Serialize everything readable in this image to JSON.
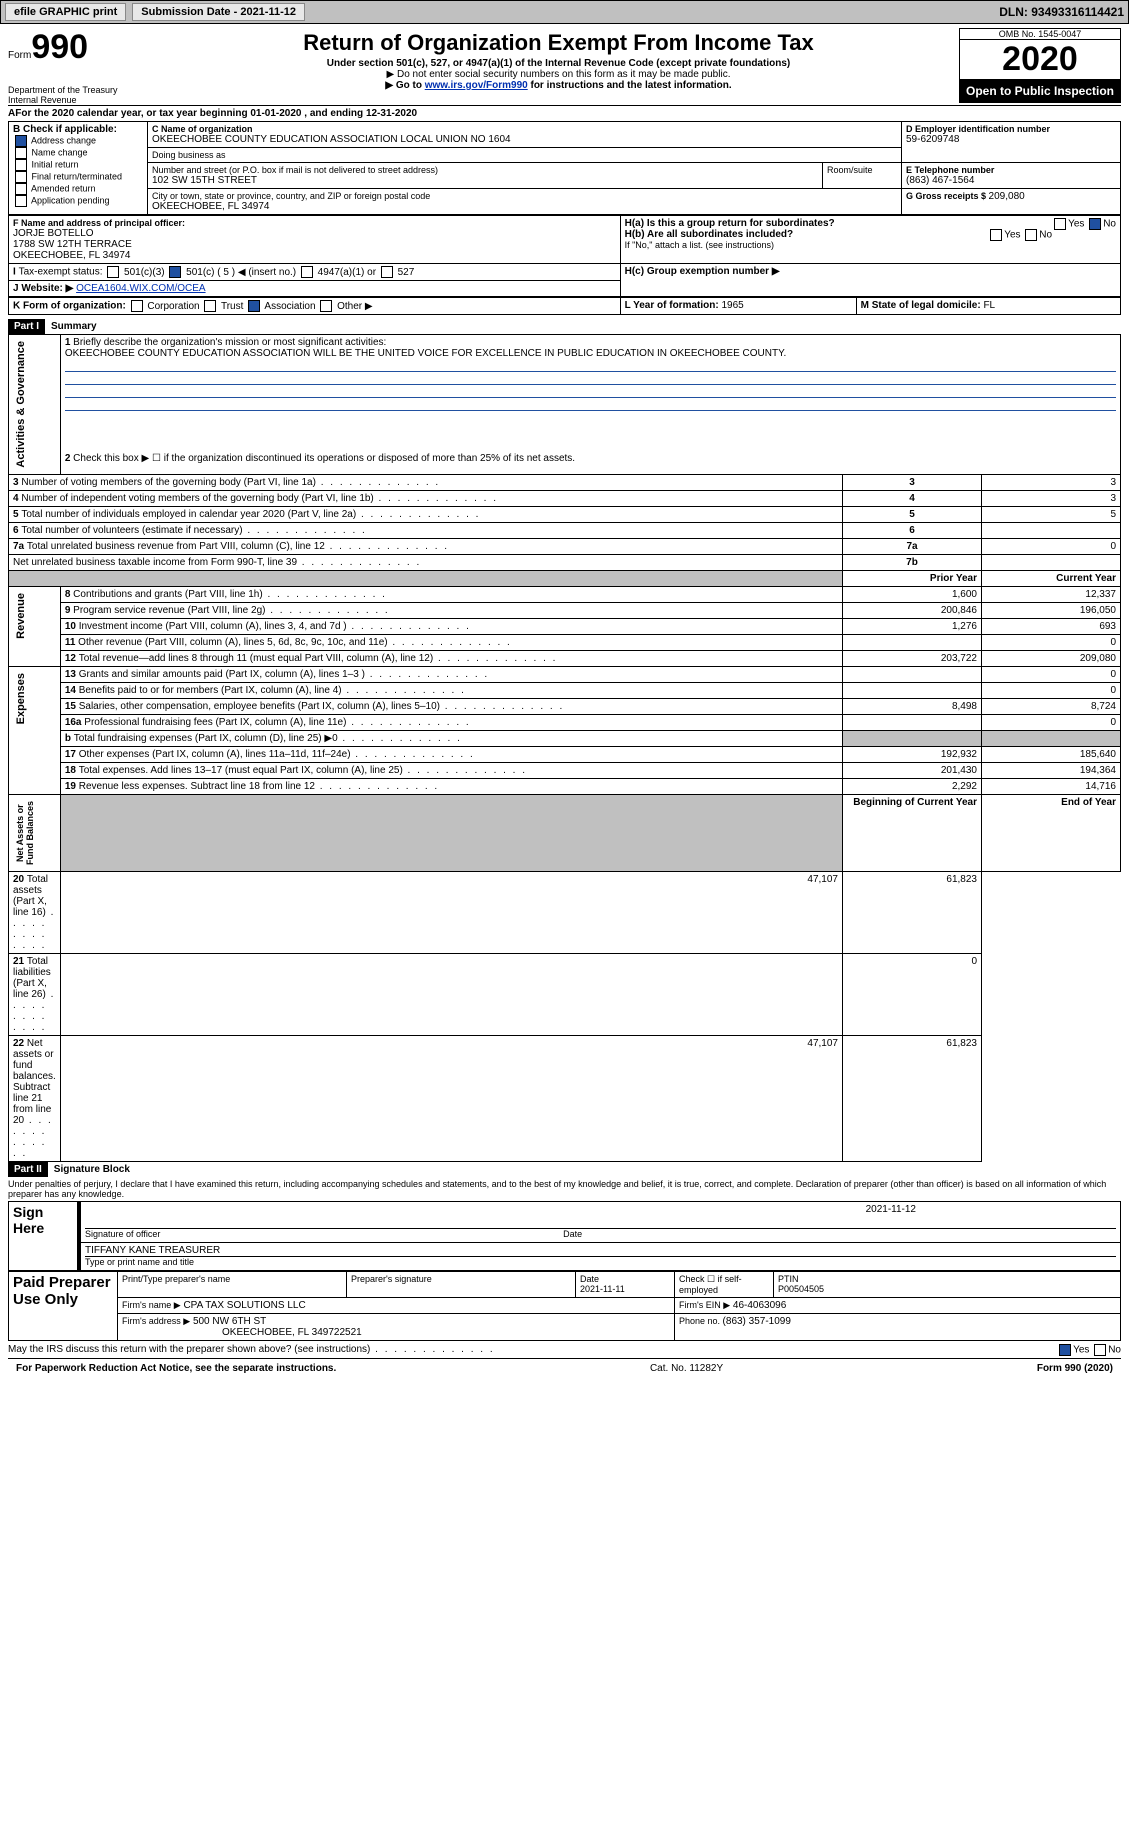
{
  "topbar": {
    "efile": "efile GRAPHIC print",
    "subm_label": "Submission Date - ",
    "subm_date": "2021-11-12",
    "dln_label": "DLN: ",
    "dln": "93493316114421"
  },
  "header": {
    "form_prefix": "Form",
    "form_no": "990",
    "title": "Return of Organization Exempt From Income Tax",
    "subtitle": "Under section 501(c), 527, or 4947(a)(1) of the Internal Revenue Code (except private foundations)",
    "note1": "▶ Do not enter social security numbers on this form as it may be made public.",
    "note2_pre": "▶ Go to ",
    "note2_link": "www.irs.gov/Form990",
    "note2_post": " for instructions and the latest information.",
    "dept": "Department of the Treasury\nInternal Revenue",
    "omb": "OMB No. 1545-0047",
    "year": "2020",
    "open": "Open to Public Inspection"
  },
  "A": {
    "text": "For the 2020 calendar year, or tax year beginning ",
    "begin": "01-01-2020",
    "mid": " , and ending ",
    "end": "12-31-2020"
  },
  "B": {
    "label": "B Check if applicable:",
    "items": [
      {
        "label": "Address change",
        "checked": true
      },
      {
        "label": "Name change",
        "checked": false
      },
      {
        "label": "Initial return",
        "checked": false
      },
      {
        "label": "Final return/terminated",
        "checked": false
      },
      {
        "label": "Amended return",
        "checked": false
      },
      {
        "label": "Application pending",
        "checked": false
      }
    ]
  },
  "C": {
    "label": "C Name of organization",
    "name": "OKEECHOBEE COUNTY EDUCATION ASSOCIATION LOCAL UNION NO 1604",
    "dba_label": "Doing business as",
    "dba": "",
    "street_label": "Number and street (or P.O. box if mail is not delivered to street address)",
    "room_label": "Room/suite",
    "street": "102 SW 15TH STREET",
    "city_label": "City or town, state or province, country, and ZIP or foreign postal code",
    "city": "OKEECHOBEE, FL  34974"
  },
  "D": {
    "label": "D Employer identification number",
    "ein": "59-6209748"
  },
  "E": {
    "label": "E Telephone number",
    "phone": "(863) 467-1564"
  },
  "G": {
    "label": "G Gross receipts $ ",
    "val": "209,080"
  },
  "F": {
    "label": "F  Name and address of principal officer:",
    "name": "JORJE BOTELLO",
    "addr1": "1788 SW 12TH TERRACE",
    "addr2": "OKEECHOBEE, FL  34974"
  },
  "H": {
    "a_label": "H(a)  Is this a group return for subordinates?",
    "a_yes": "Yes",
    "a_no": "No",
    "b_label": "H(b)  Are all subordinates included?",
    "b_yes": "Yes",
    "b_no": "No",
    "b_note": "If \"No,\" attach a list. (see instructions)",
    "c_label": "H(c)  Group exemption number ▶"
  },
  "I": {
    "label": "Tax-exempt status:",
    "opts": [
      "501(c)(3)",
      "501(c) ( 5 ) ◀ (insert no.)",
      "4947(a)(1) or",
      "527"
    ],
    "checked": 1
  },
  "J": {
    "label": "Website: ▶",
    "val": "OCEA1604.WIX.COM/OCEA"
  },
  "K": {
    "label": "K Form of organization:",
    "opts": [
      "Corporation",
      "Trust",
      "Association",
      "Other ▶"
    ],
    "checked": 2
  },
  "L": {
    "label": "L Year of formation: ",
    "val": "1965"
  },
  "M": {
    "label": "M State of legal domicile: ",
    "val": "FL"
  },
  "part1": {
    "hdr": "Part I",
    "title": "Summary"
  },
  "summary": {
    "q1": "Briefly describe the organization's mission or most significant activities:",
    "mission": "OKEECHOBEE COUNTY EDUCATION ASSOCIATION WILL BE THE UNITED VOICE FOR EXCELLENCE IN PUBLIC EDUCATION IN OKEECHOBEE COUNTY.",
    "q2": "Check this box ▶ ☐  if the organization discontinued its operations or disposed of more than 25% of its net assets.",
    "lines_gov": [
      {
        "n": "3",
        "t": "Number of voting members of the governing body (Part VI, line 1a)",
        "box": "3",
        "v": "3"
      },
      {
        "n": "4",
        "t": "Number of independent voting members of the governing body (Part VI, line 1b)",
        "box": "4",
        "v": "3"
      },
      {
        "n": "5",
        "t": "Total number of individuals employed in calendar year 2020 (Part V, line 2a)",
        "box": "5",
        "v": "5"
      },
      {
        "n": "6",
        "t": "Total number of volunteers (estimate if necessary)",
        "box": "6",
        "v": ""
      },
      {
        "n": "7a",
        "t": "Total unrelated business revenue from Part VIII, column (C), line 12",
        "box": "7a",
        "v": "0"
      },
      {
        "n": "",
        "t": "Net unrelated business taxable income from Form 990-T, line 39",
        "box": "7b",
        "v": ""
      }
    ],
    "cols": {
      "prior": "Prior Year",
      "curr": "Current Year"
    },
    "revenue": [
      {
        "n": "8",
        "t": "Contributions and grants (Part VIII, line 1h)",
        "p": "1,600",
        "c": "12,337"
      },
      {
        "n": "9",
        "t": "Program service revenue (Part VIII, line 2g)",
        "p": "200,846",
        "c": "196,050"
      },
      {
        "n": "10",
        "t": "Investment income (Part VIII, column (A), lines 3, 4, and 7d )",
        "p": "1,276",
        "c": "693"
      },
      {
        "n": "11",
        "t": "Other revenue (Part VIII, column (A), lines 5, 6d, 8c, 9c, 10c, and 11e)",
        "p": "",
        "c": "0"
      },
      {
        "n": "12",
        "t": "Total revenue—add lines 8 through 11 (must equal Part VIII, column (A), line 12)",
        "p": "203,722",
        "c": "209,080"
      }
    ],
    "expenses": [
      {
        "n": "13",
        "t": "Grants and similar amounts paid (Part IX, column (A), lines 1–3 )",
        "p": "",
        "c": "0"
      },
      {
        "n": "14",
        "t": "Benefits paid to or for members (Part IX, column (A), line 4)",
        "p": "",
        "c": "0"
      },
      {
        "n": "15",
        "t": "Salaries, other compensation, employee benefits (Part IX, column (A), lines 5–10)",
        "p": "8,498",
        "c": "8,724"
      },
      {
        "n": "16a",
        "t": "Professional fundraising fees (Part IX, column (A), line 11e)",
        "p": "",
        "c": "0"
      },
      {
        "n": "b",
        "t": "Total fundraising expenses (Part IX, column (D), line 25) ▶0",
        "p": "GREY",
        "c": "GREY"
      },
      {
        "n": "17",
        "t": "Other expenses (Part IX, column (A), lines 11a–11d, 11f–24e)",
        "p": "192,932",
        "c": "185,640"
      },
      {
        "n": "18",
        "t": "Total expenses. Add lines 13–17 (must equal Part IX, column (A), line 25)",
        "p": "201,430",
        "c": "194,364"
      },
      {
        "n": "19",
        "t": "Revenue less expenses. Subtract line 18 from line 12",
        "p": "2,292",
        "c": "14,716"
      }
    ],
    "balcols": {
      "b": "Beginning of Current Year",
      "e": "End of Year"
    },
    "balances": [
      {
        "n": "20",
        "t": "Total assets (Part X, line 16)",
        "p": "47,107",
        "c": "61,823"
      },
      {
        "n": "21",
        "t": "Total liabilities (Part X, line 26)",
        "p": "",
        "c": "0"
      },
      {
        "n": "22",
        "t": "Net assets or fund balances. Subtract line 21 from line 20",
        "p": "47,107",
        "c": "61,823"
      }
    ],
    "sidelabels": {
      "gov": "Activities & Governance",
      "rev": "Revenue",
      "exp": "Expenses",
      "bal": "Net Assets or\nFund Balances"
    }
  },
  "part2": {
    "hdr": "Part II",
    "title": "Signature Block",
    "decl": "Under penalties of perjury, I declare that I have examined this return, including accompanying schedules and statements, and to the best of my knowledge and belief, it is true, correct, and complete. Declaration of preparer (other than officer) is based on all information of which preparer has any knowledge."
  },
  "sign": {
    "here": "Sign Here",
    "sig_label": "Signature of officer",
    "date_label": "Date",
    "sig_date": "2021-11-12",
    "name": "TIFFANY KANE  TREASURER",
    "name_label": "Type or print name and title"
  },
  "prep": {
    "here": "Paid Preparer Use Only",
    "h": [
      "Print/Type preparer's name",
      "Preparer's signature",
      "Date",
      "Check ☐ if self-employed",
      "PTIN"
    ],
    "date": "2021-11-11",
    "ptin": "P00504505",
    "firm_label": "Firm's name  ▶",
    "firm": "CPA TAX SOLUTIONS LLC",
    "ein_label": "Firm's EIN ▶",
    "ein": "46-4063096",
    "addr_label": "Firm's address ▶",
    "addr": "500 NW 6TH ST",
    "addr2": "OKEECHOBEE, FL  349722521",
    "phone_label": "Phone no. ",
    "phone": "(863) 357-1099"
  },
  "bottom": {
    "q": "May the IRS discuss this return with the preparer shown above? (see instructions)",
    "yes": "Yes",
    "no": "No",
    "pra": "For Paperwork Reduction Act Notice, see the separate instructions.",
    "cat": "Cat. No. 11282Y",
    "form": "Form 990 (2020)"
  }
}
